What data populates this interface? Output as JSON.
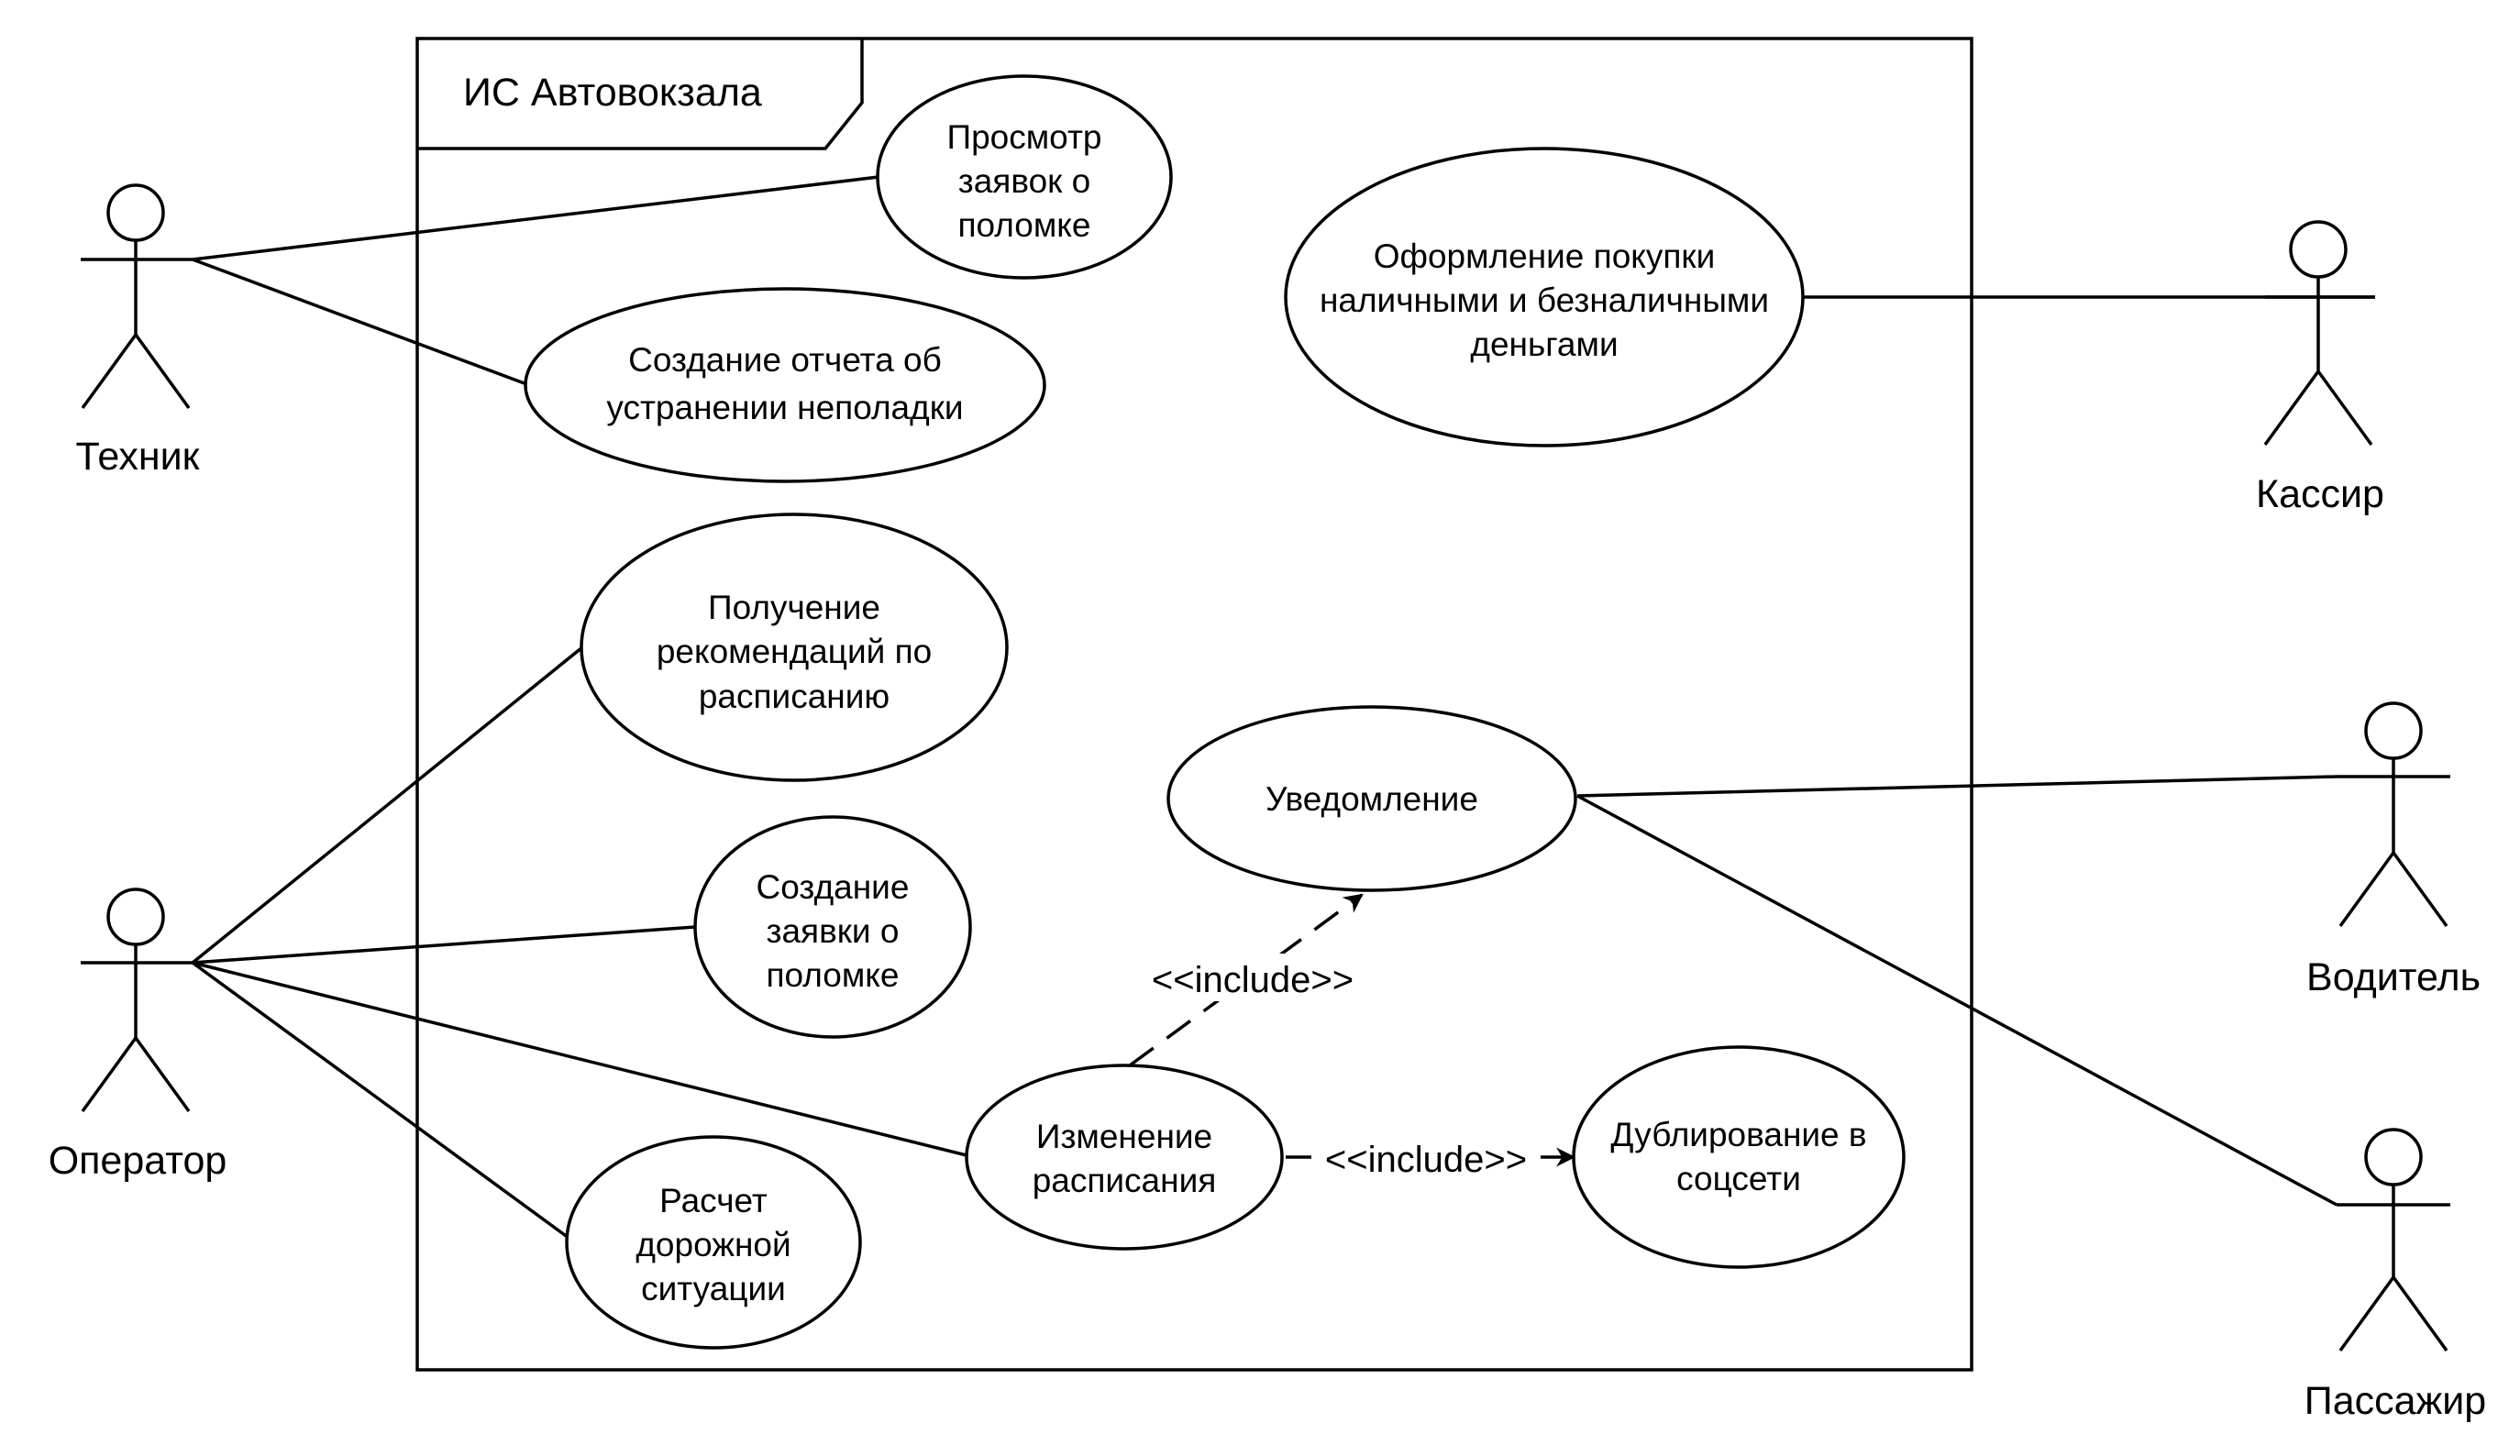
{
  "system": {
    "title": "ИС Автовокзала"
  },
  "actors": {
    "technician": "Техник",
    "operator": "Оператор",
    "cashier": "Кассир",
    "driver": "Водитель",
    "passenger": "Пассажир"
  },
  "use_cases": {
    "view_breakdowns": [
      "Просмотр",
      "заявок о",
      "поломке"
    ],
    "create_fix_report": [
      "Создание отчета об",
      "устранении неполадки"
    ],
    "purchase": [
      "Оформление покупки",
      "наличными и безналичными",
      "деньгами"
    ],
    "schedule_recommendations": [
      "Получение",
      "рекомендаций по",
      "расписанию"
    ],
    "notification": [
      "Уведомление"
    ],
    "create_breakdown_request": [
      "Создание",
      "заявки о",
      "поломке"
    ],
    "change_schedule": [
      "Изменение",
      "расписания"
    ],
    "duplicate_social": [
      "Дублирование в",
      "соцсети"
    ],
    "road_situation": [
      "Расчет",
      "дорожной",
      "ситуации"
    ]
  },
  "relations": {
    "include_notification": "<<include>>",
    "include_duplicate": "<<include>>"
  }
}
